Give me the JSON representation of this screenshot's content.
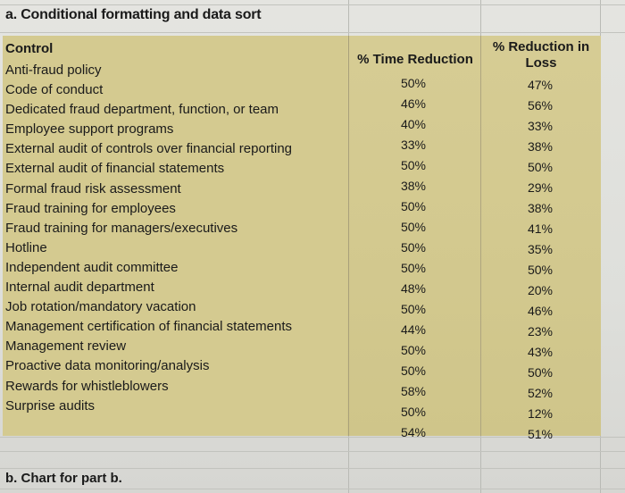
{
  "section_a_title": "a. Conditional formatting and data sort",
  "section_b_title": "b. Chart for part b.",
  "table": {
    "headers": {
      "control": "Control",
      "time_reduction": "% Time Reduction",
      "loss_reduction_line1": "% Reduction in",
      "loss_reduction_line2": "Loss"
    },
    "rows": [
      {
        "control": "Anti-fraud policy",
        "time": "50%",
        "loss": "47%"
      },
      {
        "control": "Code of conduct",
        "time": "46%",
        "loss": "56%"
      },
      {
        "control": "Dedicated fraud department, function, or team",
        "time": "40%",
        "loss": "33%"
      },
      {
        "control": "Employee support programs",
        "time": "33%",
        "loss": "38%"
      },
      {
        "control": "External audit of controls over financial reporting",
        "time": "50%",
        "loss": "50%"
      },
      {
        "control": "External audit of financial statements",
        "time": "38%",
        "loss": "29%"
      },
      {
        "control": "Formal fraud risk assessment",
        "time": "50%",
        "loss": "38%"
      },
      {
        "control": "Fraud training for employees",
        "time": "50%",
        "loss": "41%"
      },
      {
        "control": "Fraud training for managers/executives",
        "time": "50%",
        "loss": "35%"
      },
      {
        "control": "Hotline",
        "time": "50%",
        "loss": "50%"
      },
      {
        "control": "Independent audit committee",
        "time": "48%",
        "loss": "20%"
      },
      {
        "control": "Internal audit department",
        "time": "50%",
        "loss": "46%"
      },
      {
        "control": "Job rotation/mandatory vacation",
        "time": "44%",
        "loss": "23%"
      },
      {
        "control": "Management certification of financial statements",
        "time": "50%",
        "loss": "43%"
      },
      {
        "control": "Management review",
        "time": "50%",
        "loss": "50%"
      },
      {
        "control": "Proactive data monitoring/analysis",
        "time": "58%",
        "loss": "52%"
      },
      {
        "control": "Rewards for whistleblowers",
        "time": "50%",
        "loss": "12%"
      },
      {
        "control": "Surprise audits",
        "time": "54%",
        "loss": "51%"
      }
    ]
  }
}
